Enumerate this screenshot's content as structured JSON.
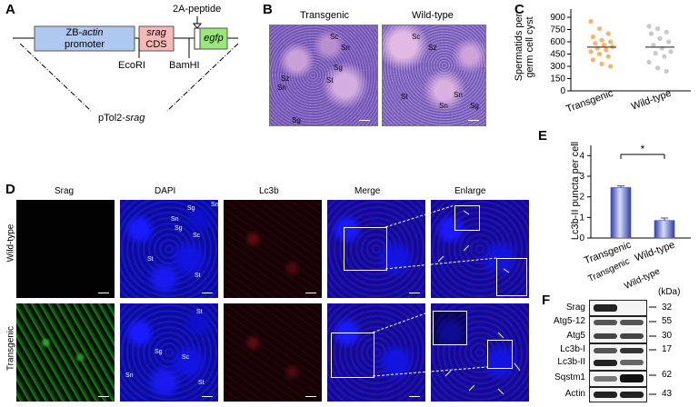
{
  "panels": {
    "A": {
      "label": "A",
      "promoter": "ZB-actin\npromoter",
      "promoter_line1_pre": "ZB-",
      "promoter_line1_it": "actin",
      "promoter_line2": "promoter",
      "srag_it": "srag",
      "srag_cds": "CDS",
      "peptide": "2A-peptide",
      "egfp": "egfp",
      "ecori": "EcoRI",
      "bamhi": "BamHI",
      "vector_pre": "pTol2-",
      "vector_it": "srag"
    },
    "B": {
      "label": "B",
      "title_left": "Transgenic",
      "title_right": "Wild-type",
      "left_labels": [
        "Sc",
        "Sn",
        "Sg",
        "Sz",
        "Sn",
        "St",
        "Sg"
      ],
      "right_labels": [
        "Sc",
        "Sz",
        "St",
        "Sn",
        "Sn",
        "Sg"
      ]
    },
    "C": {
      "label": "C"
    },
    "D": {
      "label": "D",
      "columns": [
        "Srag",
        "DAPI",
        "Lc3b",
        "Merge",
        "Enlarge"
      ],
      "rows": [
        "Wild-type",
        "Transgenic"
      ],
      "wt_dapi_labels": [
        "Sg",
        "Sn",
        "Sn",
        "Sg",
        "Sc",
        "St",
        "St"
      ],
      "tg_dapi_labels": [
        "St",
        "Sg",
        "Sn",
        "Sc",
        "St"
      ]
    },
    "E": {
      "label": "E",
      "significance": "*"
    },
    "F": {
      "label": "F",
      "col_headers": [
        "Transgenic",
        "Wild-type"
      ],
      "unit": "(kDa)",
      "proteins": [
        "Srag",
        "Atg5-12",
        "Atg5",
        "Lc3b-I",
        "Lc3b-II",
        "Sqstm1",
        "Actin"
      ],
      "kda": [
        "32",
        "55",
        "30",
        "17",
        "62",
        "43"
      ]
    }
  },
  "chart_data": [
    {
      "type": "scatter",
      "panel": "C",
      "ylabel": "Spermatids per\ngerm cell cyst",
      "ylabel_line1": "Spermatids per",
      "ylabel_line2": "germ cell cyst",
      "categories": [
        "Transgenic",
        "Wild-type"
      ],
      "ylim": [
        0,
        1000
      ],
      "yticks": [
        0,
        150,
        300,
        450,
        600,
        750,
        900
      ],
      "ytick_labels": [
        "0",
        "150",
        "300",
        "450",
        "600",
        "750",
        "900"
      ],
      "series": [
        {
          "name": "Transgenic",
          "color": "#f7b56b",
          "mean": 535,
          "values": [
            850,
            760,
            700,
            660,
            620,
            600,
            580,
            560,
            540,
            520,
            500,
            480,
            450,
            420,
            380,
            330,
            300
          ]
        },
        {
          "name": "Wild-type",
          "color": "#c9c9c9",
          "mean": 535,
          "values": [
            790,
            760,
            720,
            700,
            640,
            600,
            560,
            520,
            480,
            460,
            420,
            350,
            280,
            240
          ]
        }
      ]
    },
    {
      "type": "bar",
      "panel": "E",
      "ylabel": "Lc3b-II puncta per cell",
      "categories": [
        "Transgenic",
        "Wild-type"
      ],
      "values": [
        2.45,
        0.85
      ],
      "errors": [
        0.08,
        0.12
      ],
      "ylim": [
        0,
        4.5
      ],
      "yticks": [
        0,
        1,
        2,
        3,
        4
      ],
      "ytick_labels": [
        "0",
        "1",
        "2",
        "3",
        "4"
      ],
      "color": "#5b6bd0"
    }
  ]
}
